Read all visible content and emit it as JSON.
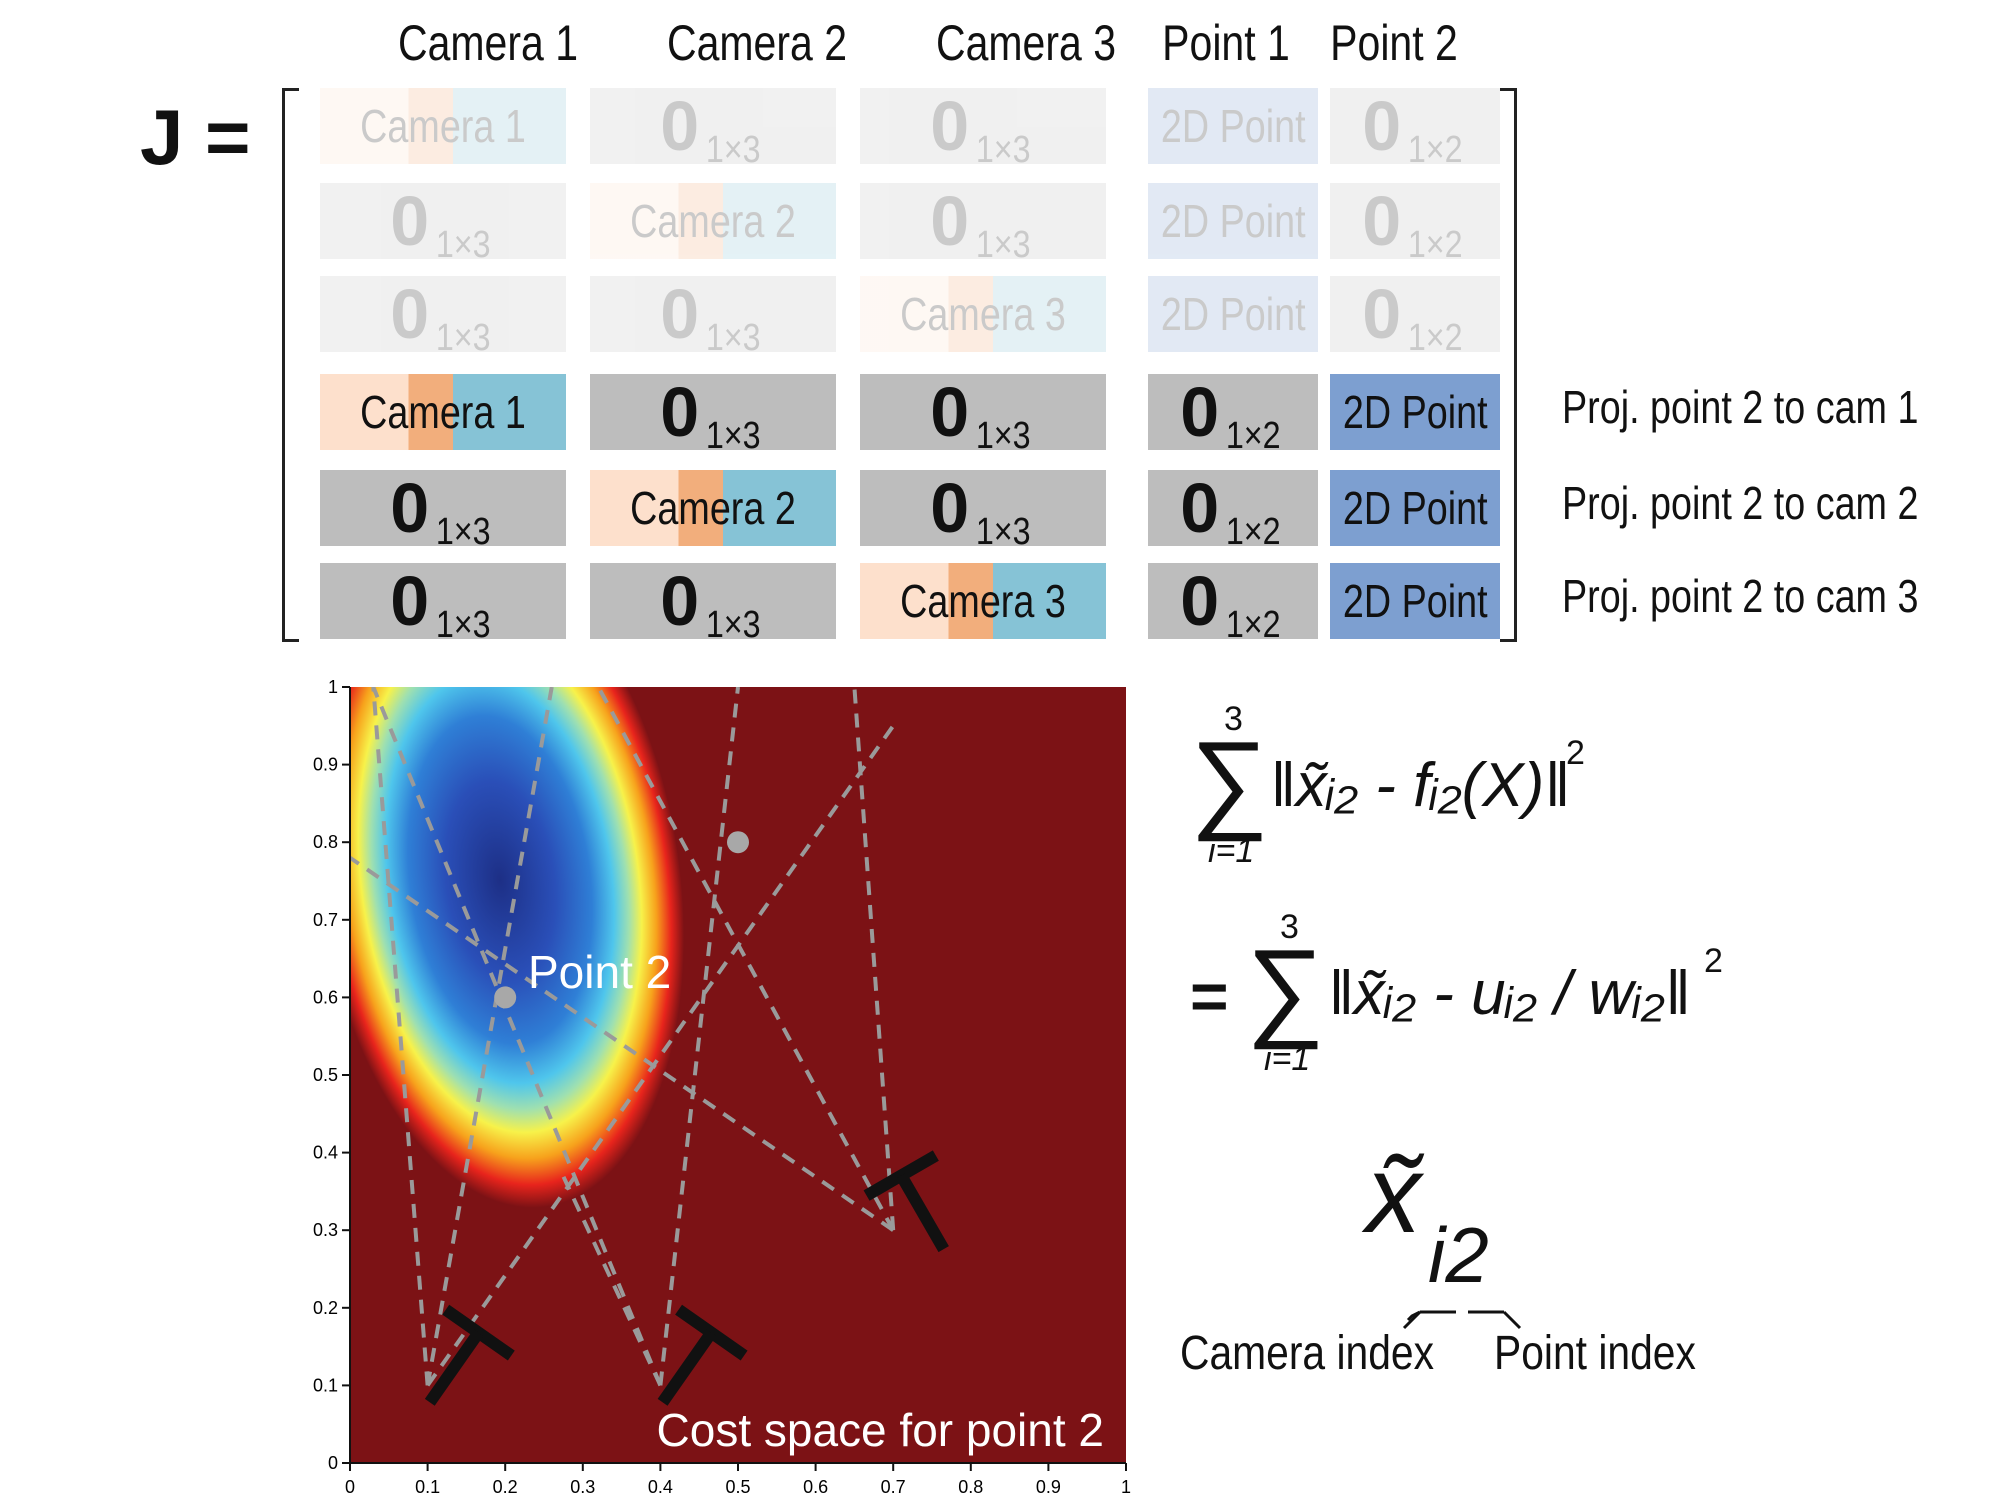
{
  "jacobian": {
    "label": "J =",
    "columns": [
      "Camera 1",
      "Camera 2",
      "Camera 3",
      "Point 1",
      "Point 2"
    ],
    "rows": [
      {
        "faded": true,
        "cells": [
          "Camera 1",
          "0|1×3",
          "0|1×3",
          "2D Point",
          "0|1×2"
        ],
        "label": ""
      },
      {
        "faded": true,
        "cells": [
          "0|1×3",
          "Camera 2",
          "0|1×3",
          "2D Point",
          "0|1×2"
        ],
        "label": ""
      },
      {
        "faded": true,
        "cells": [
          "0|1×3",
          "0|1×3",
          "Camera 3",
          "2D Point",
          "0|1×2"
        ],
        "label": ""
      },
      {
        "faded": false,
        "cells": [
          "Camera 1",
          "0|1×3",
          "0|1×3",
          "0|1×2",
          "2D Point"
        ],
        "label": "Proj. point 2 to cam 1"
      },
      {
        "faded": false,
        "cells": [
          "0|1×3",
          "Camera 2",
          "0|1×3",
          "0|1×2",
          "2D Point"
        ],
        "label": "Proj. point 2 to cam 2"
      },
      {
        "faded": false,
        "cells": [
          "0|1×3",
          "0|1×3",
          "Camera 3",
          "0|1×2",
          "2D Point"
        ],
        "label": "Proj. point 2 to cam 3"
      }
    ],
    "colors": {
      "zero": "#bdbdbd",
      "point": "#7d9fd0",
      "camera_light": "#fde0cc",
      "camera_mid": "#f2ae7c",
      "camera_blue": "#86c3d6"
    }
  },
  "plot": {
    "caption": "Cost space for point 2",
    "point_label": "Point 2",
    "x_ticks": [
      "0",
      "0.1",
      "0.2",
      "0.3",
      "0.4",
      "0.5",
      "0.6",
      "0.7",
      "0.8",
      "0.9",
      "1"
    ],
    "y_ticks": [
      "0",
      "0.1",
      "0.2",
      "0.3",
      "0.4",
      "0.5",
      "0.6",
      "0.7",
      "0.8",
      "0.9",
      "1"
    ],
    "background_color": "#7c1215",
    "points": [
      {
        "x": 0.2,
        "y": 0.6
      },
      {
        "x": 0.5,
        "y": 0.8
      }
    ],
    "cameras": [
      {
        "x": 0.1,
        "y": 0.1
      },
      {
        "x": 0.4,
        "y": 0.1
      },
      {
        "x": 0.7,
        "y": 0.3
      }
    ]
  },
  "equations": {
    "eq1": {
      "upper": "3",
      "lower": "i=1",
      "body": "‖x̃ᵢ₂ - fᵢ₂(X)‖",
      "power": "2"
    },
    "eq2": {
      "prefix": "=",
      "upper": "3",
      "lower": "i=1",
      "body": "‖x̃ᵢ₂ - uᵢ₂ / wᵢ₂‖",
      "power": "2"
    },
    "notation": {
      "symbol": "x̃",
      "subscript": "i2",
      "camera_label": "Camera index",
      "point_label": "Point index"
    }
  }
}
